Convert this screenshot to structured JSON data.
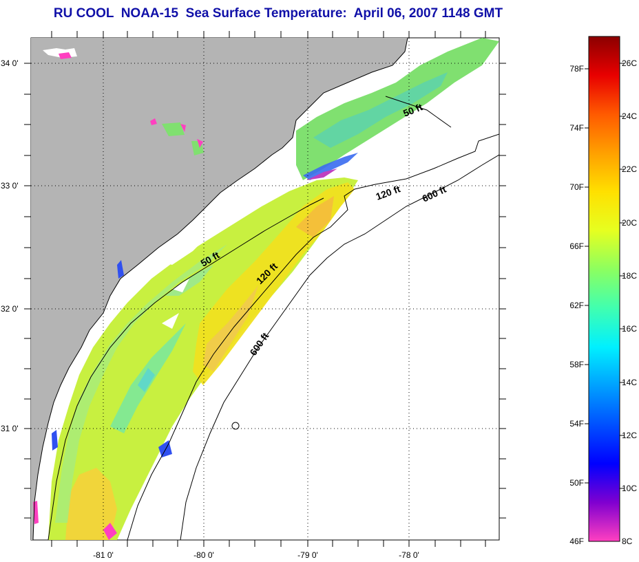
{
  "title": "RU COOL  NOAA-15  Sea Surface Temperature:  April 06, 2007 1148 GMT",
  "map": {
    "land_color": "#b4b4b4",
    "ocean_color": "#ffffff",
    "longitude_ticks": [
      "-81 0'",
      "-80 0'",
      "-79 0'",
      "-78 0'"
    ],
    "latitude_ticks": [
      "34 0'",
      "33 0'",
      "32 0'",
      "31 0'"
    ],
    "contour_labels": [
      {
        "key": "c50a",
        "text": "50 ft"
      },
      {
        "key": "c50b",
        "text": "50 ft"
      },
      {
        "key": "c120a",
        "text": "120 ft"
      },
      {
        "key": "c120b",
        "text": "120 ft"
      },
      {
        "key": "c600a",
        "text": "600 ft"
      },
      {
        "key": "c600b",
        "text": "600 ft"
      }
    ]
  },
  "colorbar": {
    "fahrenheit_labels": [
      "78F",
      "74F",
      "70F",
      "66F",
      "62F",
      "58F",
      "54F",
      "50F",
      "46F"
    ],
    "celsius_labels": [
      "26C",
      "24C",
      "22C",
      "20C",
      "18C",
      "16C",
      "14C",
      "12C",
      "10C",
      "8C"
    ],
    "gradient_stops": [
      "#8b0000",
      "#e80000",
      "#ff5a00",
      "#ffa000",
      "#ffe000",
      "#e6ff20",
      "#8cff60",
      "#40ffb0",
      "#00f0ff",
      "#00a0ff",
      "#0050ff",
      "#0000ff",
      "#8000d0",
      "#ff40c0"
    ]
  }
}
